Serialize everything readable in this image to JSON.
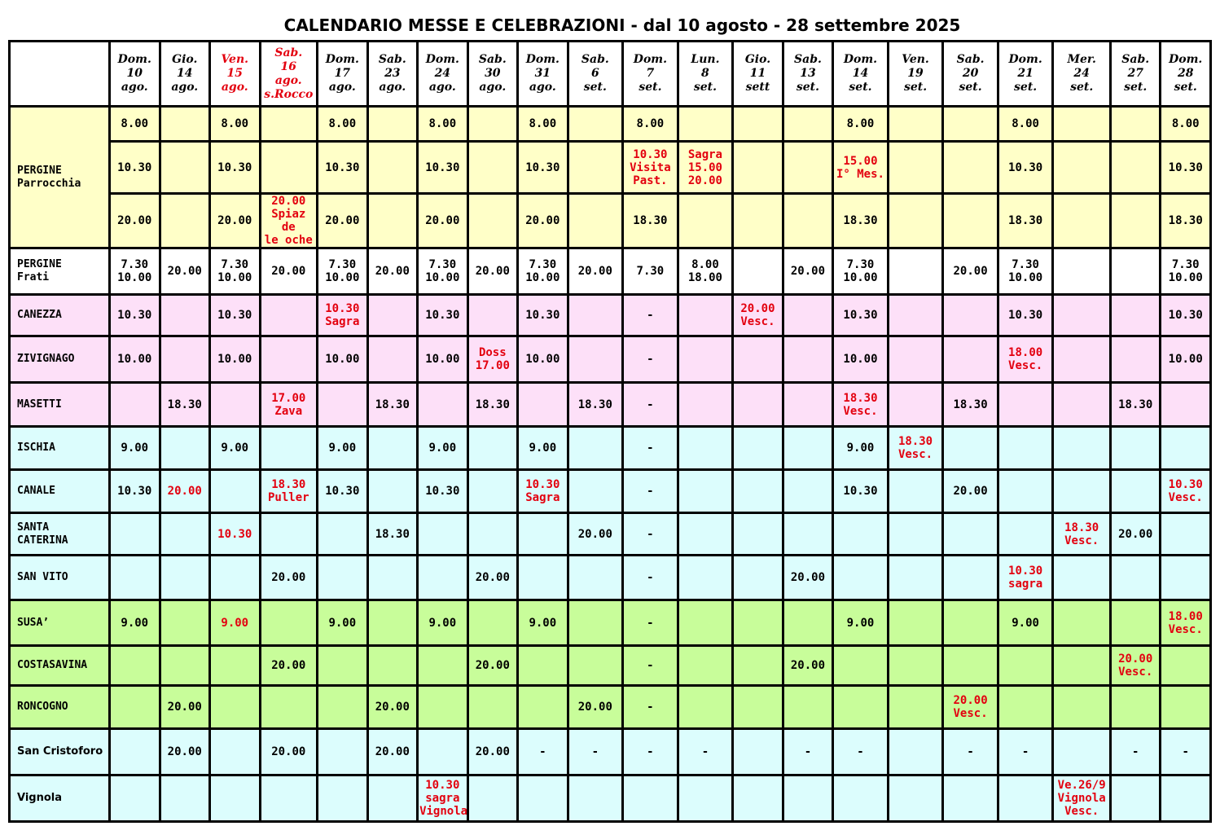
{
  "title": "CALENDARIO MESSE E CELEBRAZIONI - dal 10 agosto - 28 settembre 2025",
  "colors": {
    "pergine_parrocchia": "#ffffc8",
    "pergine_frati": "#ffffff",
    "pink_rows": "#fde0f8",
    "cyan_rows": "#dcfdfd",
    "green_rows": "#c8fd9a",
    "highlight_text": "#e3000f"
  },
  "header": [
    {
      "text": "Dom.\n10\nago.",
      "red": false
    },
    {
      "text": "Gio.\n14\nago.",
      "red": false
    },
    {
      "text": "Ven.\n15\nago.",
      "red": true
    },
    {
      "text": "Sab.\n16\nago.\ns.Rocco",
      "red": true
    },
    {
      "text": "Dom.\n17\nago.",
      "red": false
    },
    {
      "text": "Sab.\n23\nago.",
      "red": false
    },
    {
      "text": "Dom.\n24\nago.",
      "red": false
    },
    {
      "text": "Sab.\n30\nago.",
      "red": false
    },
    {
      "text": "Dom.\n31\nago.",
      "red": false
    },
    {
      "text": "Sab.\n6\nset.",
      "red": false
    },
    {
      "text": "Dom.\n7\nset.",
      "red": false
    },
    {
      "text": "Lun.\n8\nset.",
      "red": false
    },
    {
      "text": "Gio.\n11\nsett",
      "red": false
    },
    {
      "text": "Sab.\n13\nset.",
      "red": false
    },
    {
      "text": "Dom.\n14\nset.",
      "red": false
    },
    {
      "text": "Ven.\n19\nset.",
      "red": false
    },
    {
      "text": "Sab.\n20\nset.",
      "red": false
    },
    {
      "text": "Dom.\n21\nset.",
      "red": false
    },
    {
      "text": "Mer.\n24\nset.",
      "red": false
    },
    {
      "text": "Sab.\n27\nset.",
      "red": false
    },
    {
      "text": "Dom.\n28\nset.",
      "red": false
    }
  ],
  "pergine_parrocchia": {
    "label": "PERGINE\nParrocchia",
    "rows": [
      [
        "8.00",
        "",
        "8.00",
        "",
        "8.00",
        "",
        "8.00",
        "",
        "8.00",
        "",
        "8.00",
        "",
        "",
        "",
        "8.00",
        "",
        "",
        "8.00",
        "",
        "",
        "8.00"
      ],
      [
        "10.30",
        "",
        "10.30",
        "",
        "10.30",
        "",
        "10.30",
        "",
        "10.30",
        "",
        "10.30\nVisita\nPast.",
        "Sagra\n15.00\n20.00",
        "",
        "",
        "15.00\nI° Mes.",
        "",
        "",
        "10.30",
        "",
        "",
        "10.30"
      ],
      [
        "20.00",
        "",
        "20.00",
        "20.00\nSpiaz de\nle oche",
        "20.00",
        "",
        "20.00",
        "",
        "20.00",
        "",
        "18.30",
        "",
        "",
        "",
        "18.30",
        "",
        "",
        "18.30",
        "",
        "",
        "18.30"
      ]
    ],
    "red": [
      [],
      [
        10,
        11,
        14
      ],
      [
        3
      ]
    ]
  },
  "rows": [
    {
      "label": "PERGINE\nFrati",
      "color": "w",
      "cells": [
        "7.30\n10.00",
        "20.00",
        "7.30\n10.00",
        "20.00",
        "7.30\n10.00",
        "20.00",
        "7.30\n10.00",
        "20.00",
        "7.30\n10.00",
        "20.00",
        "7.30",
        "8.00\n18.00",
        "",
        "20.00",
        "7.30\n10.00",
        "",
        "20.00",
        "7.30\n10.00",
        "",
        "",
        "7.30\n10.00"
      ],
      "red": []
    },
    {
      "label": "CANEZZA",
      "color": "p",
      "cells": [
        "10.30",
        "",
        "10.30",
        "",
        "10.30\nSagra",
        "",
        "10.30",
        "",
        "10.30",
        "",
        "-",
        "",
        "20.00\nVesc.",
        "",
        "10.30",
        "",
        "",
        "10.30",
        "",
        "",
        "10.30"
      ],
      "red": [
        4,
        12
      ]
    },
    {
      "label": "ZIVIGNAGO",
      "color": "p",
      "cells": [
        "10.00",
        "",
        "10.00",
        "",
        "10.00",
        "",
        "10.00",
        "Doss\n17.00",
        "10.00",
        "",
        "-",
        "",
        "",
        "",
        "10.00",
        "",
        "",
        "18.00\nVesc.",
        "",
        "",
        "10.00"
      ],
      "red": [
        7,
        17
      ]
    },
    {
      "label": "MASETTI",
      "color": "p",
      "cells": [
        "",
        "18.30",
        "",
        "17.00\nZava",
        "",
        "18.30",
        "",
        "18.30",
        "",
        "18.30",
        "-",
        "",
        "",
        "",
        "18.30\nVesc.",
        "",
        "18.30",
        "",
        "",
        "18.30",
        ""
      ],
      "red": [
        3,
        14
      ]
    },
    {
      "label": "ISCHIA",
      "color": "c",
      "cells": [
        "9.00",
        "",
        "9.00",
        "",
        "9.00",
        "",
        "9.00",
        "",
        "9.00",
        "",
        "-",
        "",
        "",
        "",
        "9.00",
        "18.30\nVesc.",
        "",
        "",
        "",
        "",
        ""
      ],
      "red": [
        15
      ]
    },
    {
      "label": "CANALE",
      "color": "c",
      "cells": [
        "10.30",
        "20.00",
        "",
        "18.30\nPuller",
        "10.30",
        "",
        "10.30",
        "",
        "10.30\nSagra",
        "",
        "-",
        "",
        "",
        "",
        "10.30",
        "",
        "20.00",
        "",
        "",
        "",
        "10.30\nVesc."
      ],
      "red": [
        1,
        3,
        8,
        20
      ]
    },
    {
      "label": "SANTA\nCATERINA",
      "color": "c",
      "cells": [
        "",
        "",
        "10.30",
        "",
        "",
        "18.30",
        "",
        "",
        "",
        "20.00",
        "-",
        "",
        "",
        "",
        "",
        "",
        "",
        "",
        "18.30\nVesc.",
        "20.00",
        ""
      ],
      "red": [
        2,
        18
      ]
    },
    {
      "label": "SAN VITO",
      "color": "c",
      "cells": [
        "",
        "",
        "",
        "20.00",
        "",
        "",
        "",
        "20.00",
        "",
        "",
        "-",
        "",
        "",
        "20.00",
        "",
        "",
        "",
        "10.30\nsagra",
        "",
        "",
        ""
      ],
      "red": [
        17
      ]
    },
    {
      "label": "SUSA’",
      "color": "g",
      "cells": [
        "9.00",
        "",
        "9.00",
        "",
        "9.00",
        "",
        "9.00",
        "",
        "9.00",
        "",
        "-",
        "",
        "",
        "",
        "9.00",
        "",
        "",
        "9.00",
        "",
        "",
        "18.00\nVesc."
      ],
      "red": [
        2,
        20
      ]
    },
    {
      "label": "COSTASAVINA",
      "color": "g",
      "cells": [
        "",
        "",
        "",
        "20.00",
        "",
        "",
        "",
        "20.00",
        "",
        "",
        "-",
        "",
        "",
        "20.00",
        "",
        "",
        "",
        "",
        "",
        "20.00\nVesc.",
        ""
      ],
      "red": [
        19
      ]
    },
    {
      "label": "RONCOGNO",
      "color": "g",
      "cells": [
        "",
        "20.00",
        "",
        "",
        "",
        "20.00",
        "",
        "",
        "",
        "20.00",
        "-",
        "",
        "",
        "",
        "",
        "",
        "20.00\nVesc.",
        "",
        "",
        "",
        ""
      ],
      "red": [
        16
      ]
    },
    {
      "label": "San Cristoforo",
      "color": "c",
      "sans": true,
      "cells": [
        "",
        "20.00",
        "",
        "20.00",
        "",
        "20.00",
        "",
        "20.00",
        "-",
        "-",
        "-",
        "-",
        "",
        "-",
        "-",
        "",
        "-",
        "-",
        "",
        "-",
        "-"
      ],
      "red": []
    },
    {
      "label": "Vignola",
      "color": "c",
      "sans": true,
      "cells": [
        "",
        "",
        "",
        "",
        "",
        "",
        "10.30\nsagra\nVignola",
        "",
        "",
        "",
        "",
        "",
        "",
        "",
        "",
        "",
        "",
        "",
        "Ve.26/9\nVignola\nVesc.",
        "",
        ""
      ],
      "red": [
        6,
        18
      ]
    }
  ]
}
